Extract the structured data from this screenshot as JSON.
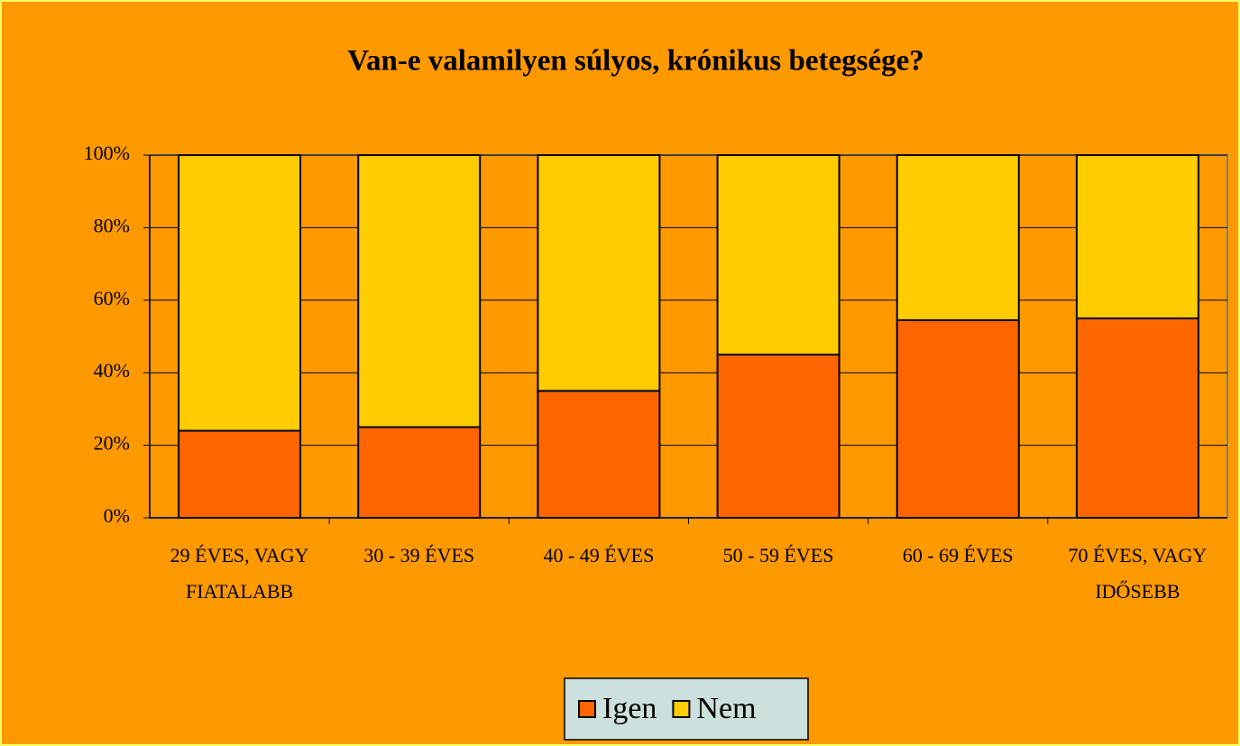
{
  "chart_data": {
    "type": "stacked_bar_percent",
    "title": "Van-e valamilyen súlyos, krónikus betegsége?",
    "categories": [
      "29 ÉVES, VAGY FIATALABB",
      "30 - 39 ÉVES",
      "40 - 49 ÉVES",
      "50 - 59 ÉVES",
      "60 - 69 ÉVES",
      "70 ÉVES, VAGY IDŐSEBB"
    ],
    "series": [
      {
        "name": "Igen",
        "color": "#ff6600",
        "values": [
          24,
          25,
          35,
          45,
          54.5,
          55
        ]
      },
      {
        "name": "Nem",
        "color": "#ffcc00",
        "values": [
          76,
          75,
          65,
          55,
          45.5,
          45
        ]
      }
    ],
    "ylim": [
      0,
      100
    ],
    "yticks": [
      {
        "value": 0,
        "label": "0%"
      },
      {
        "value": 20,
        "label": "20%"
      },
      {
        "value": 40,
        "label": "40%"
      },
      {
        "value": 60,
        "label": "60%"
      },
      {
        "value": 80,
        "label": "80%"
      },
      {
        "value": 100,
        "label": "100%"
      }
    ],
    "grid": true,
    "legend": "bottom"
  }
}
